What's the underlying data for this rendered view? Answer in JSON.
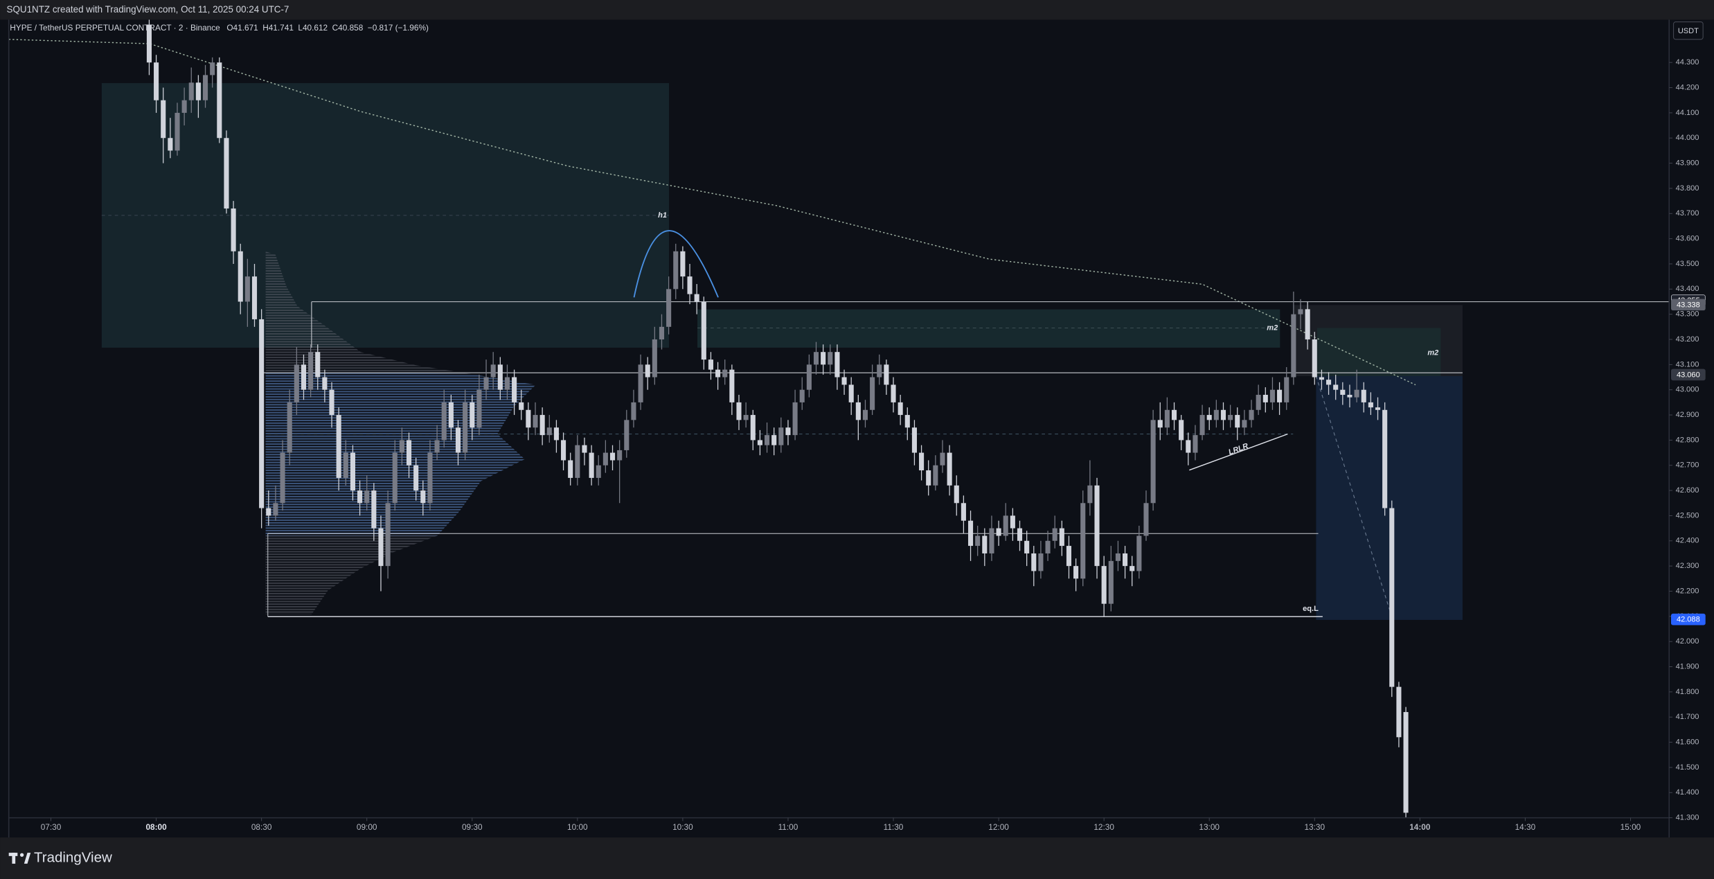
{
  "header": "SQU1NTZ created with TradingView.com, Oct 11, 2025 00:24 UTC-7",
  "brand": "TradingView",
  "currency": "USDT",
  "chart_data": {
    "type": "candlestick",
    "legend": {
      "symbol": "HYPE / TetherUS PERPETUAL CONTRACT · 2 · Binance",
      "open": "O41.671",
      "high": "H41.741",
      "low": "L40.612",
      "close": "C40.858",
      "change": "−0.817 (−1.96%)"
    },
    "annotations": [
      "h1",
      "m2",
      "m2",
      "LRLR",
      "eq.L"
    ],
    "up_color": "#787b86",
    "down_color": "#d1d4dc",
    "xlim": [
      "07:18",
      "15:11"
    ],
    "xticks": [
      "07:30",
      "08:00",
      "08:30",
      "09:00",
      "09:30",
      "10:00",
      "10:30",
      "11:00",
      "11:30",
      "12:00",
      "12:30",
      "13:00",
      "13:30",
      "14:00",
      "14:30",
      "15:00"
    ],
    "ylim": [
      41.3,
      44.47
    ],
    "yticks": [
      {
        "value": 41.3,
        "label": "41.300"
      },
      {
        "value": 41.4,
        "label": "41.400"
      },
      {
        "value": 41.5,
        "label": "41.500"
      },
      {
        "value": 41.6,
        "label": "41.600"
      },
      {
        "value": 41.7,
        "label": "41.700"
      },
      {
        "value": 41.8,
        "label": "41.800"
      },
      {
        "value": 41.9,
        "label": "41.900"
      },
      {
        "value": 42.0,
        "label": "42.000"
      },
      {
        "value": 42.1,
        "label": "42.100"
      },
      {
        "value": 42.2,
        "label": "42.200"
      },
      {
        "value": 42.3,
        "label": "42.300"
      },
      {
        "value": 42.4,
        "label": "42.400"
      },
      {
        "value": 42.5,
        "label": "42.500"
      },
      {
        "value": 42.6,
        "label": "42.600"
      },
      {
        "value": 42.7,
        "label": "42.700"
      },
      {
        "value": 42.8,
        "label": "42.800"
      },
      {
        "value": 42.9,
        "label": "42.900"
      },
      {
        "value": 43.0,
        "label": "43.000"
      },
      {
        "value": 43.1,
        "label": "43.100"
      },
      {
        "value": 43.2,
        "label": "43.200"
      },
      {
        "value": 43.3,
        "label": "43.300"
      },
      {
        "value": 43.4,
        "label": "43.400"
      },
      {
        "value": 43.5,
        "label": "43.500"
      },
      {
        "value": 43.6,
        "label": "43.600"
      },
      {
        "value": 43.7,
        "label": "43.700"
      },
      {
        "value": 43.8,
        "label": "43.800"
      },
      {
        "value": 43.9,
        "label": "43.900"
      },
      {
        "value": 44.0,
        "label": "44.000"
      },
      {
        "value": 44.1,
        "label": "44.100"
      },
      {
        "value": 44.2,
        "label": "44.200"
      },
      {
        "value": 44.3,
        "label": "44.300"
      }
    ],
    "price_labels": [
      43.355,
      43.338,
      {
        "value": 43.06,
        "label": "43.060"
      },
      42.088
    ],
    "price_label_colors": [
      "#1e222d",
      "#5d606b",
      "#363a45",
      "#2962ff"
    ],
    "x": [
      "07:58",
      "08:00",
      "08:02",
      "08:04",
      "08:06",
      "08:08",
      "08:10",
      "08:12",
      "08:14",
      "08:16",
      "08:18",
      "08:20",
      "08:22",
      "08:24",
      "08:26",
      "08:28",
      "08:30",
      "08:32",
      "08:34",
      "08:36",
      "08:38",
      "08:40",
      "08:42",
      "08:44",
      "08:46",
      "08:48",
      "08:50",
      "08:52",
      "08:54",
      "08:56",
      "08:58",
      "09:00",
      "09:02",
      "09:04",
      "09:06",
      "09:08",
      "09:10",
      "09:12",
      "09:14",
      "09:16",
      "09:18",
      "09:20",
      "09:22",
      "09:24",
      "09:26",
      "09:28",
      "09:30",
      "09:32",
      "09:34",
      "09:36",
      "09:38",
      "09:40",
      "09:42",
      "09:44",
      "09:46",
      "09:48",
      "09:50",
      "09:52",
      "09:54",
      "09:56",
      "09:58",
      "10:00",
      "10:02",
      "10:04",
      "10:06",
      "10:08",
      "10:10",
      "10:12",
      "10:14",
      "10:16",
      "10:18",
      "10:20",
      "10:22",
      "10:24",
      "10:26",
      "10:28",
      "10:30",
      "10:32",
      "10:34",
      "10:36",
      "10:38",
      "10:40",
      "10:42",
      "10:44",
      "10:46",
      "10:48",
      "10:50",
      "10:52",
      "10:54",
      "10:56",
      "10:58",
      "11:00",
      "11:02",
      "11:04",
      "11:06",
      "11:08",
      "11:10",
      "11:12",
      "11:14",
      "11:16",
      "11:18",
      "11:20",
      "11:22",
      "11:24",
      "11:26",
      "11:28",
      "11:30",
      "11:32",
      "11:34",
      "11:36",
      "11:38",
      "11:40",
      "11:42",
      "11:44",
      "11:46",
      "11:48",
      "11:50",
      "11:52",
      "11:54",
      "11:56",
      "11:58",
      "12:00",
      "12:02",
      "12:04",
      "12:06",
      "12:08",
      "12:10",
      "12:12",
      "12:14",
      "12:16",
      "12:18",
      "12:20",
      "12:22",
      "12:24",
      "12:26",
      "12:28",
      "12:30",
      "12:32",
      "12:34",
      "12:36",
      "12:38",
      "12:40",
      "12:42",
      "12:44",
      "12:46",
      "12:48",
      "12:50",
      "12:52",
      "12:54",
      "12:56",
      "12:58",
      "13:00",
      "13:02",
      "13:04",
      "13:06",
      "13:08",
      "13:10",
      "13:12",
      "13:14",
      "13:16",
      "13:18",
      "13:20",
      "13:22",
      "13:24",
      "13:26",
      "13:28",
      "13:30",
      "13:32",
      "13:34",
      "13:36",
      "13:38",
      "13:40",
      "13:42",
      "13:44",
      "13:46",
      "13:48",
      "13:50",
      "13:52",
      "13:54",
      "13:56"
    ],
    "ohlc": [
      [
        44.45,
        44.47,
        44.25,
        44.3
      ],
      [
        44.3,
        44.33,
        44.1,
        44.15
      ],
      [
        44.15,
        44.2,
        43.9,
        44.0
      ],
      [
        44.0,
        44.08,
        43.92,
        43.95
      ],
      [
        43.95,
        44.14,
        43.93,
        44.1
      ],
      [
        44.1,
        44.2,
        44.05,
        44.15
      ],
      [
        44.15,
        44.28,
        44.1,
        44.22
      ],
      [
        44.22,
        44.25,
        44.08,
        44.15
      ],
      [
        44.15,
        44.29,
        44.12,
        44.25
      ],
      [
        44.25,
        44.32,
        44.2,
        44.3
      ],
      [
        44.3,
        44.32,
        43.98,
        44.0
      ],
      [
        44.0,
        44.03,
        43.7,
        43.72
      ],
      [
        43.72,
        43.75,
        43.5,
        43.55
      ],
      [
        43.55,
        43.58,
        43.3,
        43.35
      ],
      [
        43.35,
        43.52,
        43.25,
        43.45
      ],
      [
        43.45,
        43.5,
        43.25,
        43.28
      ],
      [
        43.28,
        43.32,
        42.45,
        42.53
      ],
      [
        42.53,
        42.6,
        42.46,
        42.5
      ],
      [
        42.5,
        42.62,
        42.48,
        42.55
      ],
      [
        42.55,
        42.8,
        42.52,
        42.75
      ],
      [
        42.75,
        43.0,
        42.7,
        42.95
      ],
      [
        42.95,
        43.17,
        42.9,
        43.1
      ],
      [
        43.1,
        43.14,
        42.96,
        43.0
      ],
      [
        43.0,
        43.18,
        42.97,
        43.15
      ],
      [
        43.15,
        43.18,
        43.0,
        43.05
      ],
      [
        43.05,
        43.08,
        42.95,
        43.0
      ],
      [
        43.0,
        43.03,
        42.85,
        42.9
      ],
      [
        42.9,
        42.93,
        42.6,
        42.65
      ],
      [
        42.65,
        42.8,
        42.62,
        42.75
      ],
      [
        42.75,
        42.78,
        42.56,
        42.6
      ],
      [
        42.6,
        42.64,
        42.5,
        42.55
      ],
      [
        42.55,
        42.66,
        42.52,
        42.6
      ],
      [
        42.6,
        42.63,
        42.4,
        42.45
      ],
      [
        42.45,
        42.5,
        42.2,
        42.3
      ],
      [
        42.3,
        42.6,
        42.25,
        42.55
      ],
      [
        42.55,
        42.8,
        42.52,
        42.75
      ],
      [
        42.75,
        42.85,
        42.7,
        42.8
      ],
      [
        42.8,
        42.83,
        42.65,
        42.7
      ],
      [
        42.7,
        42.73,
        42.56,
        42.6
      ],
      [
        42.6,
        42.64,
        42.5,
        42.55
      ],
      [
        42.55,
        42.8,
        42.52,
        42.75
      ],
      [
        42.75,
        42.86,
        42.72,
        42.8
      ],
      [
        42.8,
        43.0,
        42.77,
        42.95
      ],
      [
        42.95,
        42.98,
        42.8,
        42.85
      ],
      [
        42.85,
        42.88,
        42.7,
        42.75
      ],
      [
        42.75,
        43.0,
        42.72,
        42.95
      ],
      [
        42.95,
        42.98,
        42.8,
        42.85
      ],
      [
        42.85,
        43.06,
        42.82,
        43.0
      ],
      [
        43.0,
        43.12,
        42.96,
        43.05
      ],
      [
        43.05,
        43.15,
        43.0,
        43.1
      ],
      [
        43.1,
        43.13,
        42.96,
        43.0
      ],
      [
        43.0,
        43.1,
        42.96,
        43.05
      ],
      [
        43.05,
        43.08,
        42.9,
        42.95
      ],
      [
        42.95,
        43.0,
        42.88,
        42.92
      ],
      [
        42.92,
        42.95,
        42.8,
        42.85
      ],
      [
        42.85,
        42.95,
        42.82,
        42.9
      ],
      [
        42.9,
        42.93,
        42.78,
        42.82
      ],
      [
        42.82,
        42.9,
        42.79,
        42.85
      ],
      [
        42.85,
        42.88,
        42.75,
        42.8
      ],
      [
        42.8,
        42.83,
        42.68,
        42.72
      ],
      [
        42.72,
        42.75,
        42.62,
        42.65
      ],
      [
        42.65,
        42.82,
        42.62,
        42.78
      ],
      [
        42.78,
        42.81,
        42.7,
        42.75
      ],
      [
        42.75,
        42.78,
        42.62,
        42.65
      ],
      [
        42.65,
        42.74,
        42.62,
        42.7
      ],
      [
        42.7,
        42.8,
        42.67,
        42.75
      ],
      [
        42.75,
        42.78,
        42.68,
        42.72
      ],
      [
        42.72,
        42.8,
        42.55,
        42.76
      ],
      [
        42.76,
        42.92,
        42.73,
        42.88
      ],
      [
        42.88,
        43.0,
        42.85,
        42.95
      ],
      [
        42.95,
        43.14,
        42.92,
        43.1
      ],
      [
        43.1,
        43.13,
        43.0,
        43.05
      ],
      [
        43.05,
        43.25,
        43.02,
        43.2
      ],
      [
        43.2,
        43.3,
        43.16,
        43.25
      ],
      [
        43.25,
        43.45,
        43.22,
        43.4
      ],
      [
        43.4,
        43.58,
        43.36,
        43.55
      ],
      [
        43.55,
        43.57,
        43.4,
        43.45
      ],
      [
        43.45,
        43.5,
        43.34,
        43.38
      ],
      [
        43.38,
        43.42,
        43.3,
        43.35
      ],
      [
        43.35,
        43.37,
        43.08,
        43.12
      ],
      [
        43.12,
        43.15,
        43.04,
        43.08
      ],
      [
        43.08,
        43.11,
        43.0,
        43.05
      ],
      [
        43.05,
        43.12,
        43.02,
        43.08
      ],
      [
        43.08,
        43.1,
        42.9,
        42.95
      ],
      [
        42.95,
        42.98,
        42.84,
        42.88
      ],
      [
        42.88,
        42.95,
        42.85,
        42.9
      ],
      [
        42.9,
        42.92,
        42.76,
        42.8
      ],
      [
        42.8,
        42.84,
        42.74,
        42.78
      ],
      [
        42.78,
        42.87,
        42.75,
        42.82
      ],
      [
        42.82,
        42.85,
        42.74,
        42.78
      ],
      [
        42.78,
        42.89,
        42.75,
        42.85
      ],
      [
        42.85,
        42.88,
        42.78,
        42.82
      ],
      [
        42.82,
        43.0,
        42.8,
        42.95
      ],
      [
        42.95,
        43.05,
        42.92,
        43.0
      ],
      [
        43.0,
        43.14,
        42.97,
        43.1
      ],
      [
        43.1,
        43.19,
        43.06,
        43.15
      ],
      [
        43.15,
        43.18,
        43.06,
        43.1
      ],
      [
        43.1,
        43.18,
        43.06,
        43.15
      ],
      [
        43.15,
        43.18,
        43.0,
        43.05
      ],
      [
        43.05,
        43.08,
        42.98,
        43.02
      ],
      [
        43.02,
        43.05,
        42.9,
        42.95
      ],
      [
        42.95,
        42.98,
        42.8,
        42.88
      ],
      [
        42.88,
        42.96,
        42.85,
        42.92
      ],
      [
        42.92,
        43.1,
        42.9,
        43.05
      ],
      [
        43.05,
        43.14,
        43.02,
        43.1
      ],
      [
        43.1,
        43.12,
        42.98,
        43.02
      ],
      [
        43.02,
        43.05,
        42.91,
        42.95
      ],
      [
        42.95,
        42.98,
        42.86,
        42.9
      ],
      [
        42.9,
        42.93,
        42.8,
        42.85
      ],
      [
        42.85,
        42.88,
        42.7,
        42.75
      ],
      [
        42.75,
        42.78,
        42.64,
        42.68
      ],
      [
        42.68,
        42.72,
        42.58,
        42.62
      ],
      [
        42.62,
        42.74,
        42.6,
        42.7
      ],
      [
        42.7,
        42.8,
        42.67,
        42.75
      ],
      [
        42.75,
        42.78,
        42.58,
        42.62
      ],
      [
        42.62,
        42.66,
        42.5,
        42.55
      ],
      [
        42.55,
        42.58,
        42.43,
        42.48
      ],
      [
        42.48,
        42.52,
        42.32,
        42.38
      ],
      [
        42.38,
        42.46,
        42.34,
        42.42
      ],
      [
        42.42,
        42.45,
        42.3,
        42.35
      ],
      [
        42.35,
        42.5,
        42.32,
        42.45
      ],
      [
        42.45,
        42.48,
        42.38,
        42.42
      ],
      [
        42.42,
        42.55,
        42.4,
        42.5
      ],
      [
        42.5,
        42.53,
        42.4,
        42.45
      ],
      [
        42.45,
        42.48,
        42.36,
        42.4
      ],
      [
        42.4,
        42.44,
        42.3,
        42.35
      ],
      [
        42.35,
        42.38,
        42.22,
        42.28
      ],
      [
        42.28,
        42.4,
        42.25,
        42.35
      ],
      [
        42.35,
        42.44,
        42.32,
        42.4
      ],
      [
        42.4,
        42.5,
        42.37,
        42.45
      ],
      [
        42.45,
        42.48,
        42.34,
        42.38
      ],
      [
        42.38,
        42.42,
        42.25,
        42.3
      ],
      [
        42.3,
        42.33,
        42.2,
        42.25
      ],
      [
        42.25,
        42.6,
        42.22,
        42.55
      ],
      [
        42.55,
        42.72,
        42.5,
        42.62
      ],
      [
        42.62,
        42.65,
        42.25,
        42.3
      ],
      [
        42.3,
        42.34,
        42.1,
        42.15
      ],
      [
        42.15,
        42.38,
        42.12,
        42.32
      ],
      [
        42.32,
        42.4,
        42.28,
        42.35
      ],
      [
        42.35,
        42.38,
        42.25,
        42.3
      ],
      [
        42.3,
        42.34,
        42.22,
        42.28
      ],
      [
        42.28,
        42.46,
        42.25,
        42.42
      ],
      [
        42.42,
        42.6,
        42.4,
        42.55
      ],
      [
        42.55,
        42.92,
        42.52,
        42.88
      ],
      [
        42.88,
        42.95,
        42.8,
        42.85
      ],
      [
        42.85,
        42.97,
        42.82,
        42.92
      ],
      [
        42.92,
        42.95,
        42.84,
        42.88
      ],
      [
        42.88,
        42.9,
        42.76,
        42.8
      ],
      [
        42.8,
        42.83,
        42.7,
        42.75
      ],
      [
        42.75,
        42.86,
        42.72,
        42.82
      ],
      [
        42.82,
        42.94,
        42.8,
        42.9
      ],
      [
        42.9,
        42.93,
        42.84,
        42.88
      ],
      [
        42.88,
        42.96,
        42.85,
        42.92
      ],
      [
        42.92,
        42.95,
        42.84,
        42.88
      ],
      [
        42.88,
        42.94,
        42.85,
        42.9
      ],
      [
        42.9,
        42.93,
        42.8,
        42.85
      ],
      [
        42.85,
        42.92,
        42.82,
        42.88
      ],
      [
        42.88,
        42.96,
        42.85,
        42.92
      ],
      [
        42.92,
        43.02,
        42.9,
        42.98
      ],
      [
        42.98,
        43.01,
        42.91,
        42.95
      ],
      [
        42.95,
        43.05,
        42.92,
        43.0
      ],
      [
        43.0,
        43.03,
        42.9,
        42.95
      ],
      [
        42.95,
        43.09,
        42.92,
        43.05
      ],
      [
        43.05,
        43.39,
        43.02,
        43.3
      ],
      [
        43.3,
        43.36,
        43.24,
        43.32
      ],
      [
        43.32,
        43.35,
        43.16,
        43.2
      ],
      [
        43.2,
        43.23,
        43.02,
        43.05
      ],
      [
        43.05,
        43.08,
        43.0,
        43.04
      ],
      [
        43.04,
        43.07,
        42.98,
        43.02
      ],
      [
        43.02,
        43.06,
        42.96,
        43.0
      ],
      [
        43.0,
        43.03,
        42.94,
        42.98
      ],
      [
        42.98,
        43.02,
        42.93,
        42.97
      ],
      [
        42.97,
        43.08,
        42.95,
        43.0
      ],
      [
        43.0,
        43.03,
        42.91,
        42.95
      ],
      [
        42.95,
        42.99,
        42.9,
        42.93
      ],
      [
        42.93,
        42.97,
        42.88,
        42.92
      ],
      [
        42.92,
        42.95,
        42.5,
        42.53
      ],
      [
        42.53,
        42.56,
        41.78,
        41.82
      ],
      [
        41.82,
        41.84,
        41.58,
        41.62
      ],
      [
        41.72,
        41.74,
        41.3,
        41.32
      ]
    ]
  }
}
